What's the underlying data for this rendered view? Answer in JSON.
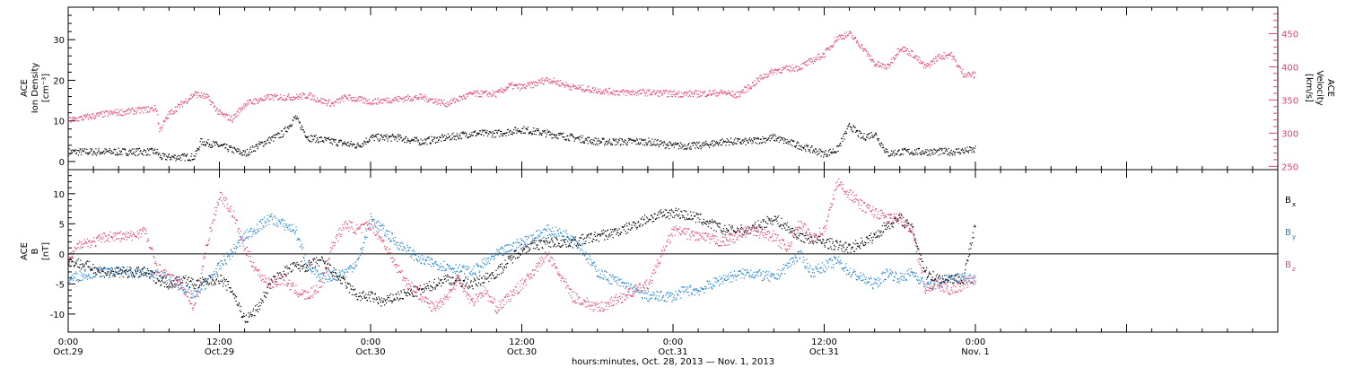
{
  "colors": {
    "black": "#000000",
    "red": "#e8406a",
    "blue": "#1a7fd6"
  },
  "xaxis": {
    "title": "hours:minutes, Oct. 28, 2013 — Nov.  1, 2013",
    "range_hours": [
      0,
      96
    ],
    "ticks": [
      {
        "h": 0,
        "time": "0:00",
        "day": "Oct.29"
      },
      {
        "h": 12,
        "time": "12:00",
        "day": "Oct.29"
      },
      {
        "h": 24,
        "time": "0:00",
        "day": "Oct.30"
      },
      {
        "h": 36,
        "time": "12:00",
        "day": "Oct.30"
      },
      {
        "h": 48,
        "time": "0:00",
        "day": "Oct.31"
      },
      {
        "h": 60,
        "time": "12:00",
        "day": "Oct.31"
      },
      {
        "h": 72,
        "time": "0:00",
        "day": "Nov. 1"
      }
    ]
  },
  "panel1": {
    "left_label": [
      "ACE",
      "Ion Density",
      "[cm⁻³]"
    ],
    "right_label": [
      "ACE",
      "Velocity",
      "[km/s]"
    ],
    "left_ticks": [
      0,
      10,
      20,
      30
    ],
    "left_ylim": [
      -2,
      38
    ],
    "right_ticks": [
      250,
      300,
      350,
      400,
      450
    ],
    "right_ylim": [
      245,
      490
    ]
  },
  "panel2": {
    "left_label": [
      "ACE",
      "B",
      "[nT]"
    ],
    "ticks": [
      -10,
      -5,
      0,
      5,
      10
    ],
    "ylim": [
      -13,
      14
    ],
    "legend": [
      "B",
      "B",
      "B"
    ],
    "legend_subscripts": [
      "x",
      "y",
      "z"
    ]
  },
  "chart_data": [
    {
      "type": "scatter",
      "x_unit": "hours since 0:00 Oct.29",
      "series": [
        {
          "axis": "left",
          "color": "black",
          "x": [
            0,
            4,
            7,
            7.3,
            10,
            10.5,
            12,
            14,
            15,
            17,
            18,
            19,
            21,
            23,
            24,
            26,
            28,
            30,
            32,
            34,
            36,
            38,
            40,
            42,
            44,
            46,
            48,
            50,
            52,
            54,
            55,
            56,
            57,
            58,
            60,
            61,
            62,
            63,
            64,
            65,
            66,
            67,
            68,
            70,
            72
          ],
          "y": [
            2.5,
            2.5,
            2.5,
            1.2,
            1.2,
            5,
            4,
            2,
            4,
            7,
            11,
            6,
            5,
            4,
            6,
            6,
            5,
            6,
            7,
            7,
            8,
            7,
            6,
            5,
            5,
            5,
            4,
            4,
            5,
            5,
            5.5,
            6,
            5,
            4,
            2,
            3,
            9,
            6,
            7,
            2,
            2.5,
            2.5,
            2.5,
            2.5,
            3
          ]
        },
        {
          "axis": "right",
          "color": "red",
          "x": [
            0,
            3,
            7,
            7.2,
            8,
            9,
            10,
            11,
            12,
            13,
            14,
            15,
            16,
            18,
            19,
            20,
            21,
            22,
            24,
            26,
            28,
            30,
            32,
            34,
            35,
            36,
            37,
            38,
            40,
            42,
            44,
            46,
            48,
            50,
            52,
            53,
            54,
            55,
            56,
            58,
            59,
            60,
            61,
            62,
            63,
            64,
            65,
            66,
            67,
            68,
            69,
            70,
            71,
            72
          ],
          "y": [
            320,
            330,
            338,
            305,
            330,
            345,
            360,
            355,
            330,
            322,
            345,
            350,
            355,
            355,
            358,
            350,
            345,
            355,
            348,
            352,
            355,
            345,
            360,
            360,
            372,
            370,
            375,
            382,
            370,
            365,
            362,
            362,
            360,
            360,
            362,
            358,
            370,
            385,
            395,
            400,
            410,
            420,
            445,
            450,
            430,
            405,
            400,
            430,
            420,
            400,
            415,
            420,
            390,
            388
          ]
        }
      ]
    },
    {
      "type": "scatter",
      "x_unit": "hours since 0:00 Oct.29",
      "series": [
        {
          "name": "Bx",
          "color": "black",
          "x": [
            0,
            3,
            6,
            8,
            9,
            10,
            12,
            13,
            14,
            15,
            16,
            17,
            18,
            19,
            20,
            21,
            22,
            23,
            24,
            25,
            26,
            28,
            30,
            32,
            34,
            36,
            38,
            40,
            42,
            44,
            46,
            48,
            50,
            52,
            54,
            56,
            58,
            60,
            62,
            64,
            65,
            66,
            67,
            68,
            69,
            70,
            71,
            72
          ],
          "y": [
            -1,
            -3,
            -3,
            -5,
            -4,
            -5,
            -4,
            -6,
            -11,
            -9,
            -5,
            -3,
            -2,
            -2,
            -1,
            -3,
            -5,
            -7,
            -7,
            -8,
            -7,
            -6,
            -4,
            -5,
            -3,
            1,
            2,
            2,
            3,
            4,
            6,
            7,
            6,
            4,
            4,
            6,
            3,
            2,
            1,
            3,
            5,
            6,
            4,
            -3,
            -4,
            -4,
            -4,
            5
          ]
        },
        {
          "name": "By",
          "color": "blue",
          "x": [
            0,
            2,
            4,
            6,
            8,
            10,
            12,
            14,
            16,
            18,
            19,
            20,
            22,
            23,
            24,
            26,
            28,
            30,
            32,
            34,
            36,
            38,
            40,
            42,
            44,
            46,
            48,
            49,
            50,
            52,
            54,
            56,
            57,
            58,
            59,
            60,
            61,
            62,
            63,
            64,
            65,
            66,
            67,
            68,
            69,
            70,
            72
          ],
          "y": [
            -4,
            -3,
            -3,
            -3,
            -4,
            -7,
            -2,
            3,
            6,
            4,
            -2,
            -4,
            -3,
            -1,
            6,
            2,
            -1,
            -2,
            -3,
            0,
            2,
            4,
            3,
            -3,
            -5,
            -7,
            -7,
            -6,
            -6,
            -4,
            -3,
            -4,
            -2,
            0,
            -3,
            -2,
            -1,
            -3,
            -4,
            -5,
            -3,
            -4,
            -3,
            -5,
            -5,
            -4,
            -4
          ]
        },
        {
          "name": "Bz",
          "color": "red",
          "x": [
            0,
            1,
            2,
            3,
            4,
            5,
            6,
            7,
            8,
            9,
            10,
            11,
            12,
            13,
            14,
            15,
            16,
            17,
            18,
            19,
            20,
            21,
            22,
            23,
            24,
            25,
            26,
            27,
            28,
            29,
            30,
            31,
            32,
            33,
            34,
            36,
            38,
            40,
            42,
            44,
            46,
            48,
            50,
            52,
            54,
            56,
            57,
            58,
            59,
            60,
            61,
            62,
            63,
            64,
            65,
            66,
            67,
            68,
            69,
            70,
            71,
            72
          ],
          "y": [
            -1,
            2,
            2,
            3,
            3,
            3,
            4,
            -2,
            -4,
            -5,
            -9,
            2,
            10,
            7,
            1,
            -3,
            -5,
            -4,
            -6,
            -7,
            -5,
            2,
            5,
            4,
            5,
            2,
            -2,
            -5,
            -7,
            -9,
            -7,
            -4,
            -8,
            -6,
            -9,
            -5,
            0,
            -7,
            -9,
            -7,
            -5,
            4,
            3,
            2,
            4,
            3,
            1,
            5,
            3,
            4,
            12,
            10,
            8,
            7,
            6,
            6,
            4,
            -6,
            -5,
            -6,
            -5,
            -4
          ]
        }
      ]
    }
  ]
}
